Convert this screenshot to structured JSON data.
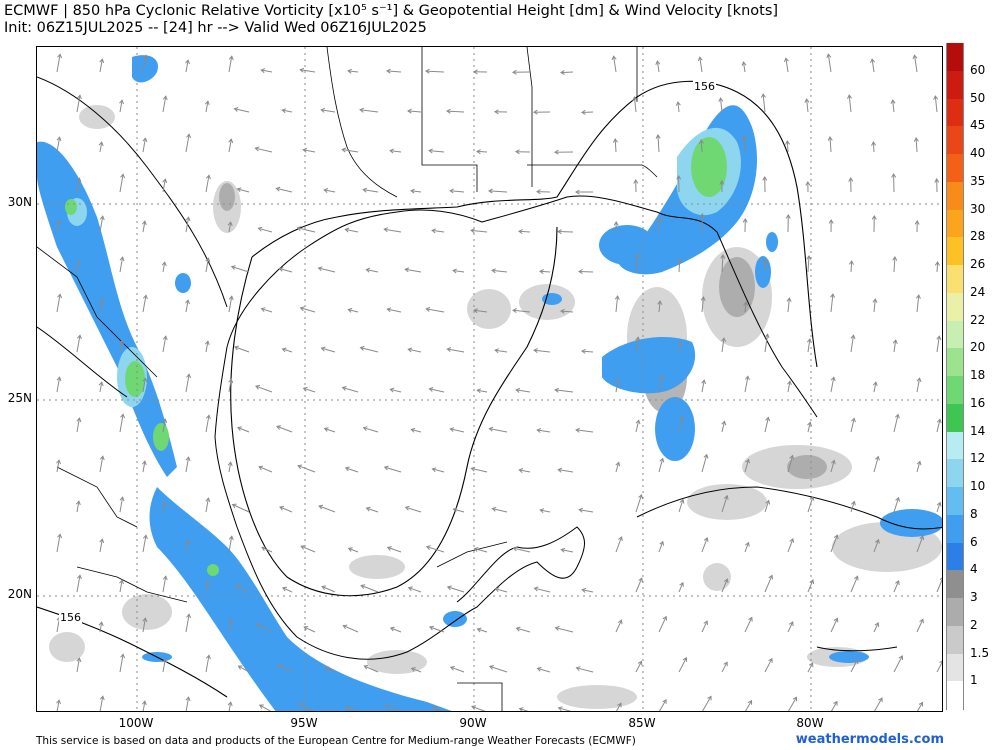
{
  "header": {
    "line1": "ECMWF | 850 hPa Cyclonic Relative Vorticity [x10⁵ s⁻¹] & Geopotential Height [dm] & Wind Velocity [knots]",
    "line2": "Init: 06Z15JUL2025 -- [24] hr --> Valid Wed 06Z16JUL2025"
  },
  "axes": {
    "lat_labels": [
      "30N",
      "25N",
      "20N"
    ],
    "lon_labels": [
      "100W",
      "95W",
      "90W",
      "85W",
      "80W"
    ]
  },
  "contours": {
    "height_labels": [
      "156",
      "156"
    ]
  },
  "colorbar": {
    "labels": [
      "60",
      "50",
      "45",
      "40",
      "35",
      "30",
      "28",
      "26",
      "24",
      "22",
      "20",
      "18",
      "16",
      "14",
      "12",
      "10",
      "8",
      "6",
      "4",
      "3",
      "2",
      "1.5",
      "1"
    ],
    "colors": [
      "#b50c0c",
      "#cc1c12",
      "#dd2d12",
      "#e94715",
      "#f36117",
      "#f88b1a",
      "#fba51e",
      "#fcc225",
      "#f9e070",
      "#eaf0a8",
      "#c8efb3",
      "#9de38f",
      "#6fd873",
      "#3fc652",
      "#b7ecf2",
      "#8ed6f0",
      "#64bdf0",
      "#3f9ef0",
      "#2b7fe6",
      "#8f8f8f",
      "#acacac",
      "#cacaca",
      "#e4e4e4",
      "#ffffff"
    ]
  },
  "footer": {
    "attribution": "This service is based on data and products of the European Centre for Medium-range Weather Forecasts (ECMWF)",
    "brand": "weathermodels.com"
  }
}
